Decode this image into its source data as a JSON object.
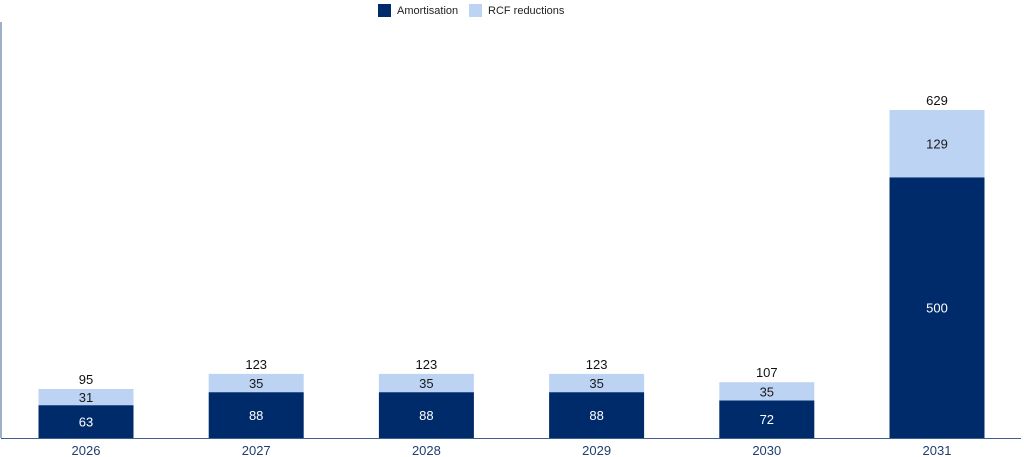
{
  "colors": {
    "amortisation": "#002b6b",
    "rcf": "#bdd3f3",
    "axis": "#3f5f8f"
  },
  "chart_data": {
    "type": "bar",
    "stacked": true,
    "categories": [
      "2026",
      "2027",
      "2028",
      "2029",
      "2030",
      "2031"
    ],
    "series": [
      {
        "name": "Amortisation",
        "values": [
          63,
          88,
          88,
          88,
          72,
          500
        ]
      },
      {
        "name": "RCF reductions",
        "values": [
          31,
          35,
          35,
          35,
          35,
          129
        ]
      }
    ],
    "totals": [
      95,
      123,
      123,
      123,
      107,
      629
    ],
    "ylim": [
      0,
      629
    ],
    "legend": "top-center",
    "grid": false,
    "y_ticks_shown": false
  }
}
